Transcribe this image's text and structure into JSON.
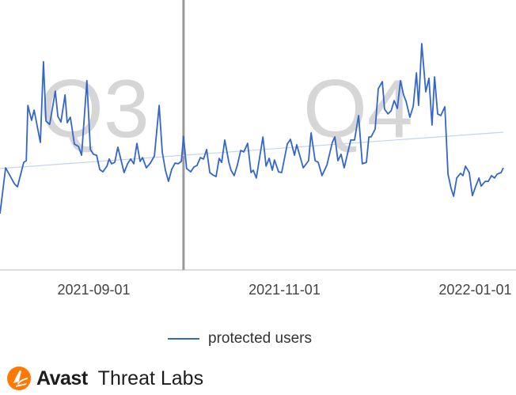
{
  "chart_data": {
    "type": "line",
    "title": "",
    "xlabel": "",
    "ylabel": "",
    "x_unit": "days since 2021-08-02",
    "xlim": [
      0,
      161
    ],
    "ylim": [
      0,
      100
    ],
    "y_unit": "relative (no y-axis labels shown)",
    "grid": false,
    "legend_position": "bottom",
    "x_ticks": [
      {
        "day": 30,
        "label": "2021-09-01"
      },
      {
        "day": 91,
        "label": "2021-11-01"
      },
      {
        "day": 152,
        "label": "2022-01-01"
      }
    ],
    "annotations": [
      {
        "text": "Q3",
        "day": 27
      },
      {
        "text": "Q4",
        "day": 110
      }
    ],
    "quarter_divider_day": 58.7,
    "series": [
      {
        "name": "protected users",
        "color": "#3366cc",
        "points": [
          [
            0,
            23.7
          ],
          [
            1.8,
            43
          ],
          [
            4.6,
            36.3
          ],
          [
            5.6,
            35
          ],
          [
            7.6,
            45.3
          ],
          [
            8.4,
            46
          ],
          [
            8.9,
            69.3
          ],
          [
            10.1,
            63
          ],
          [
            10.9,
            67.3
          ],
          [
            12.9,
            53.7
          ],
          [
            13.9,
            87.7
          ],
          [
            14.7,
            62.7
          ],
          [
            15.9,
            61.3
          ],
          [
            17.7,
            75.3
          ],
          [
            18.5,
            64.7
          ],
          [
            19.5,
            62.3
          ],
          [
            20.8,
            73.7
          ],
          [
            21.5,
            62
          ],
          [
            22.5,
            64.3
          ],
          [
            23.8,
            53
          ],
          [
            25.1,
            52
          ],
          [
            26.1,
            48.3
          ],
          [
            27.8,
            79.7
          ],
          [
            28.9,
            50.7
          ],
          [
            29.9,
            48.7
          ],
          [
            30.9,
            48.3
          ],
          [
            31.9,
            42.3
          ],
          [
            32.9,
            41.3
          ],
          [
            34.2,
            43.7
          ],
          [
            34.9,
            46.7
          ],
          [
            35.7,
            44.7
          ],
          [
            36.7,
            45.3
          ],
          [
            37.7,
            51.7
          ],
          [
            38.7,
            46.3
          ],
          [
            39.7,
            41
          ],
          [
            40.8,
            44.7
          ],
          [
            41.8,
            46.7
          ],
          [
            42.8,
            44.7
          ],
          [
            43.8,
            53.3
          ],
          [
            44.8,
            45.7
          ],
          [
            45.6,
            47.3
          ],
          [
            46.8,
            43
          ],
          [
            48.1,
            45
          ],
          [
            49.4,
            48
          ],
          [
            50.9,
            69.3
          ],
          [
            51.9,
            49.7
          ],
          [
            52.9,
            42
          ],
          [
            53.9,
            37.3
          ],
          [
            54.9,
            42.3
          ],
          [
            56,
            45
          ],
          [
            57,
            44.7
          ],
          [
            58,
            45.7
          ],
          [
            58.7,
            56.3
          ],
          [
            59.7,
            42.7
          ],
          [
            61,
            41.3
          ],
          [
            62,
            43.3
          ],
          [
            63,
            44
          ],
          [
            64.1,
            47.3
          ],
          [
            65.1,
            46.7
          ],
          [
            66.1,
            50.7
          ],
          [
            67.1,
            41
          ],
          [
            68.1,
            40
          ],
          [
            69.1,
            39.3
          ],
          [
            70.1,
            47
          ],
          [
            70.9,
            45.3
          ],
          [
            71.9,
            54.7
          ],
          [
            73.2,
            45.3
          ],
          [
            73.9,
            42
          ],
          [
            74.9,
            39.7
          ],
          [
            75.9,
            44
          ],
          [
            77,
            50.3
          ],
          [
            78,
            49.7
          ],
          [
            79.2,
            53.3
          ],
          [
            80.3,
            41
          ],
          [
            81,
            42
          ],
          [
            82,
            38.7
          ],
          [
            84.1,
            56
          ],
          [
            85.1,
            43.7
          ],
          [
            86.1,
            47
          ],
          [
            87.1,
            42
          ],
          [
            87.8,
            46.3
          ],
          [
            89.1,
            41.3
          ],
          [
            90.1,
            41
          ],
          [
            91.9,
            53
          ],
          [
            92.9,
            55
          ],
          [
            94.2,
            48.3
          ],
          [
            94.9,
            52.7
          ],
          [
            97,
            43
          ],
          [
            98.7,
            46
          ],
          [
            99.5,
            57.7
          ],
          [
            100.8,
            46
          ],
          [
            101.8,
            45.3
          ],
          [
            103,
            39.7
          ],
          [
            104.6,
            44.3
          ],
          [
            106.3,
            53.7
          ],
          [
            107.1,
            56
          ],
          [
            108.1,
            46
          ],
          [
            109.1,
            48.7
          ],
          [
            110.1,
            43
          ],
          [
            112.2,
            54.7
          ],
          [
            113.4,
            54.7
          ],
          [
            114.7,
            65
          ],
          [
            115.9,
            44.7
          ],
          [
            117.2,
            45.3
          ],
          [
            118,
            56
          ],
          [
            118.7,
            56
          ],
          [
            120,
            59.3
          ],
          [
            121,
            76.3
          ],
          [
            122.3,
            79.3
          ],
          [
            123,
            67.7
          ],
          [
            124.1,
            65.7
          ],
          [
            125.1,
            67
          ],
          [
            126.1,
            71.3
          ],
          [
            127.1,
            68
          ],
          [
            128.1,
            79.7
          ],
          [
            129.1,
            73.7
          ],
          [
            129.9,
            71
          ],
          [
            131.1,
            64.3
          ],
          [
            132.2,
            69
          ],
          [
            133.2,
            83
          ],
          [
            133.9,
            69.3
          ],
          [
            134.9,
            95.3
          ],
          [
            136.2,
            75
          ],
          [
            137.2,
            80.7
          ],
          [
            138.2,
            61
          ],
          [
            139,
            81.3
          ],
          [
            140,
            65.7
          ],
          [
            141,
            65
          ],
          [
            142.3,
            68.7
          ],
          [
            143.3,
            40.3
          ],
          [
            144.3,
            34.3
          ],
          [
            145.1,
            31
          ],
          [
            146.1,
            38.7
          ],
          [
            147.3,
            40.7
          ],
          [
            148.1,
            39.7
          ],
          [
            148.9,
            43.7
          ],
          [
            150.1,
            41
          ],
          [
            151.1,
            31.3
          ],
          [
            152.2,
            35.3
          ],
          [
            153.2,
            38.7
          ],
          [
            153.9,
            35.3
          ],
          [
            155.2,
            37.3
          ],
          [
            156.2,
            37.3
          ],
          [
            157.2,
            39.7
          ],
          [
            158.2,
            38.7
          ],
          [
            159,
            40.3
          ],
          [
            160.3,
            41
          ],
          [
            161,
            43
          ]
        ]
      },
      {
        "name": "trend",
        "color": "#c6d2f0",
        "points": [
          [
            0,
            42.7
          ],
          [
            161,
            58
          ]
        ]
      }
    ]
  },
  "legend": {
    "label": "protected users"
  },
  "branding": {
    "brand": "Avast",
    "subtitle": "Threat Labs"
  }
}
